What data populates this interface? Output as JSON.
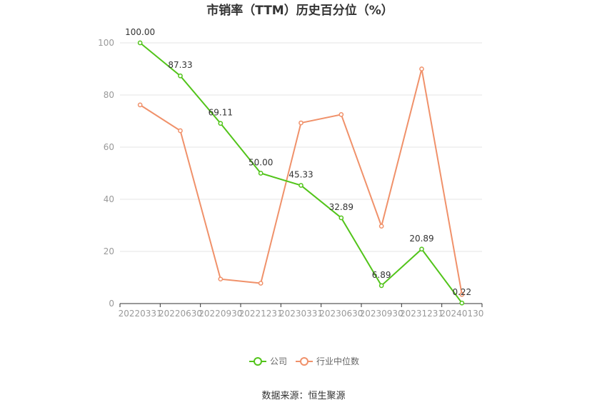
{
  "chart_data": {
    "type": "line",
    "title": "市销率（TTM）历史百分位（%）",
    "xlabel": "",
    "ylabel": "",
    "ylim": [
      0,
      100
    ],
    "yticks": [
      0,
      20,
      40,
      60,
      80,
      100
    ],
    "grid": true,
    "legend_position": "bottom",
    "categories": [
      "20220331",
      "20220630",
      "20220930",
      "20221231",
      "20230331",
      "20230630",
      "20230930",
      "20231231",
      "20240130"
    ],
    "series": [
      {
        "name": "公司",
        "color": "#52c41a",
        "values": [
          100.0,
          87.33,
          69.11,
          50.0,
          45.33,
          32.89,
          6.89,
          20.89,
          0.22
        ],
        "labels": [
          "100.00",
          "87.33",
          "69.11",
          "50.00",
          "45.33",
          "32.89",
          "6.89",
          "20.89",
          "0.22"
        ],
        "show_labels": true
      },
      {
        "name": "行业中位数",
        "color": "#f0916a",
        "values": [
          76.2,
          66.3,
          9.4,
          7.8,
          69.3,
          72.5,
          29.7,
          90.0,
          3.5
        ],
        "show_labels": false
      }
    ],
    "source": "数据来源：恒生聚源"
  }
}
